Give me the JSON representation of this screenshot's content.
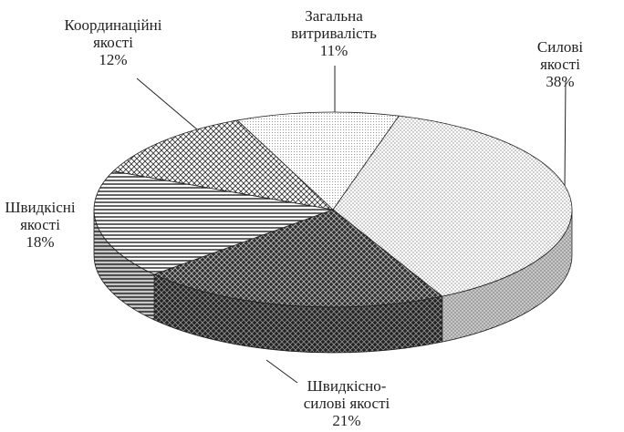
{
  "chart_data": {
    "type": "pie3d",
    "categories": [
      "Силові якості",
      "Швидкісно-\nсилові якості",
      "Швидкісні\nякості",
      "Координаційні\nякості",
      "Загальна\nвитривалість"
    ],
    "values": [
      38,
      21,
      18,
      12,
      11
    ],
    "value_labels": [
      "38%",
      "21%",
      "18%",
      "12%",
      "11%"
    ]
  }
}
